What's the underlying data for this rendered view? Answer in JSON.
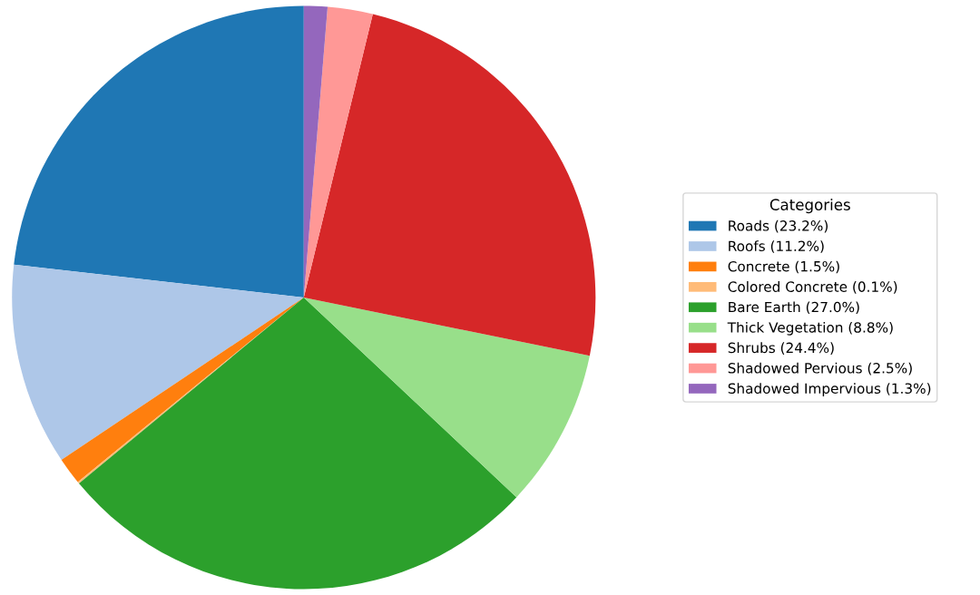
{
  "chart_data": {
    "type": "pie",
    "legend_title": "Categories",
    "legend": "right",
    "categories": [
      "Roads (23.2%)",
      "Roofs (11.2%)",
      "Concrete (1.5%)",
      "Colored Concrete (0.1%)",
      "Bare Earth (27.0%)",
      "Thick Vegetation (8.8%)",
      "Shrubs (24.4%)",
      "Shadowed Pervious (2.5%)",
      "Shadowed Impervious (1.3%)"
    ],
    "values": [
      23.2,
      11.2,
      1.5,
      0.1,
      27.0,
      8.8,
      24.4,
      2.5,
      1.3
    ],
    "colors": [
      "#1f77b4",
      "#aec7e8",
      "#ff7f0e",
      "#ffbb78",
      "#2ca02c",
      "#98df8a",
      "#d62728",
      "#ff9896",
      "#9467bd"
    ]
  }
}
